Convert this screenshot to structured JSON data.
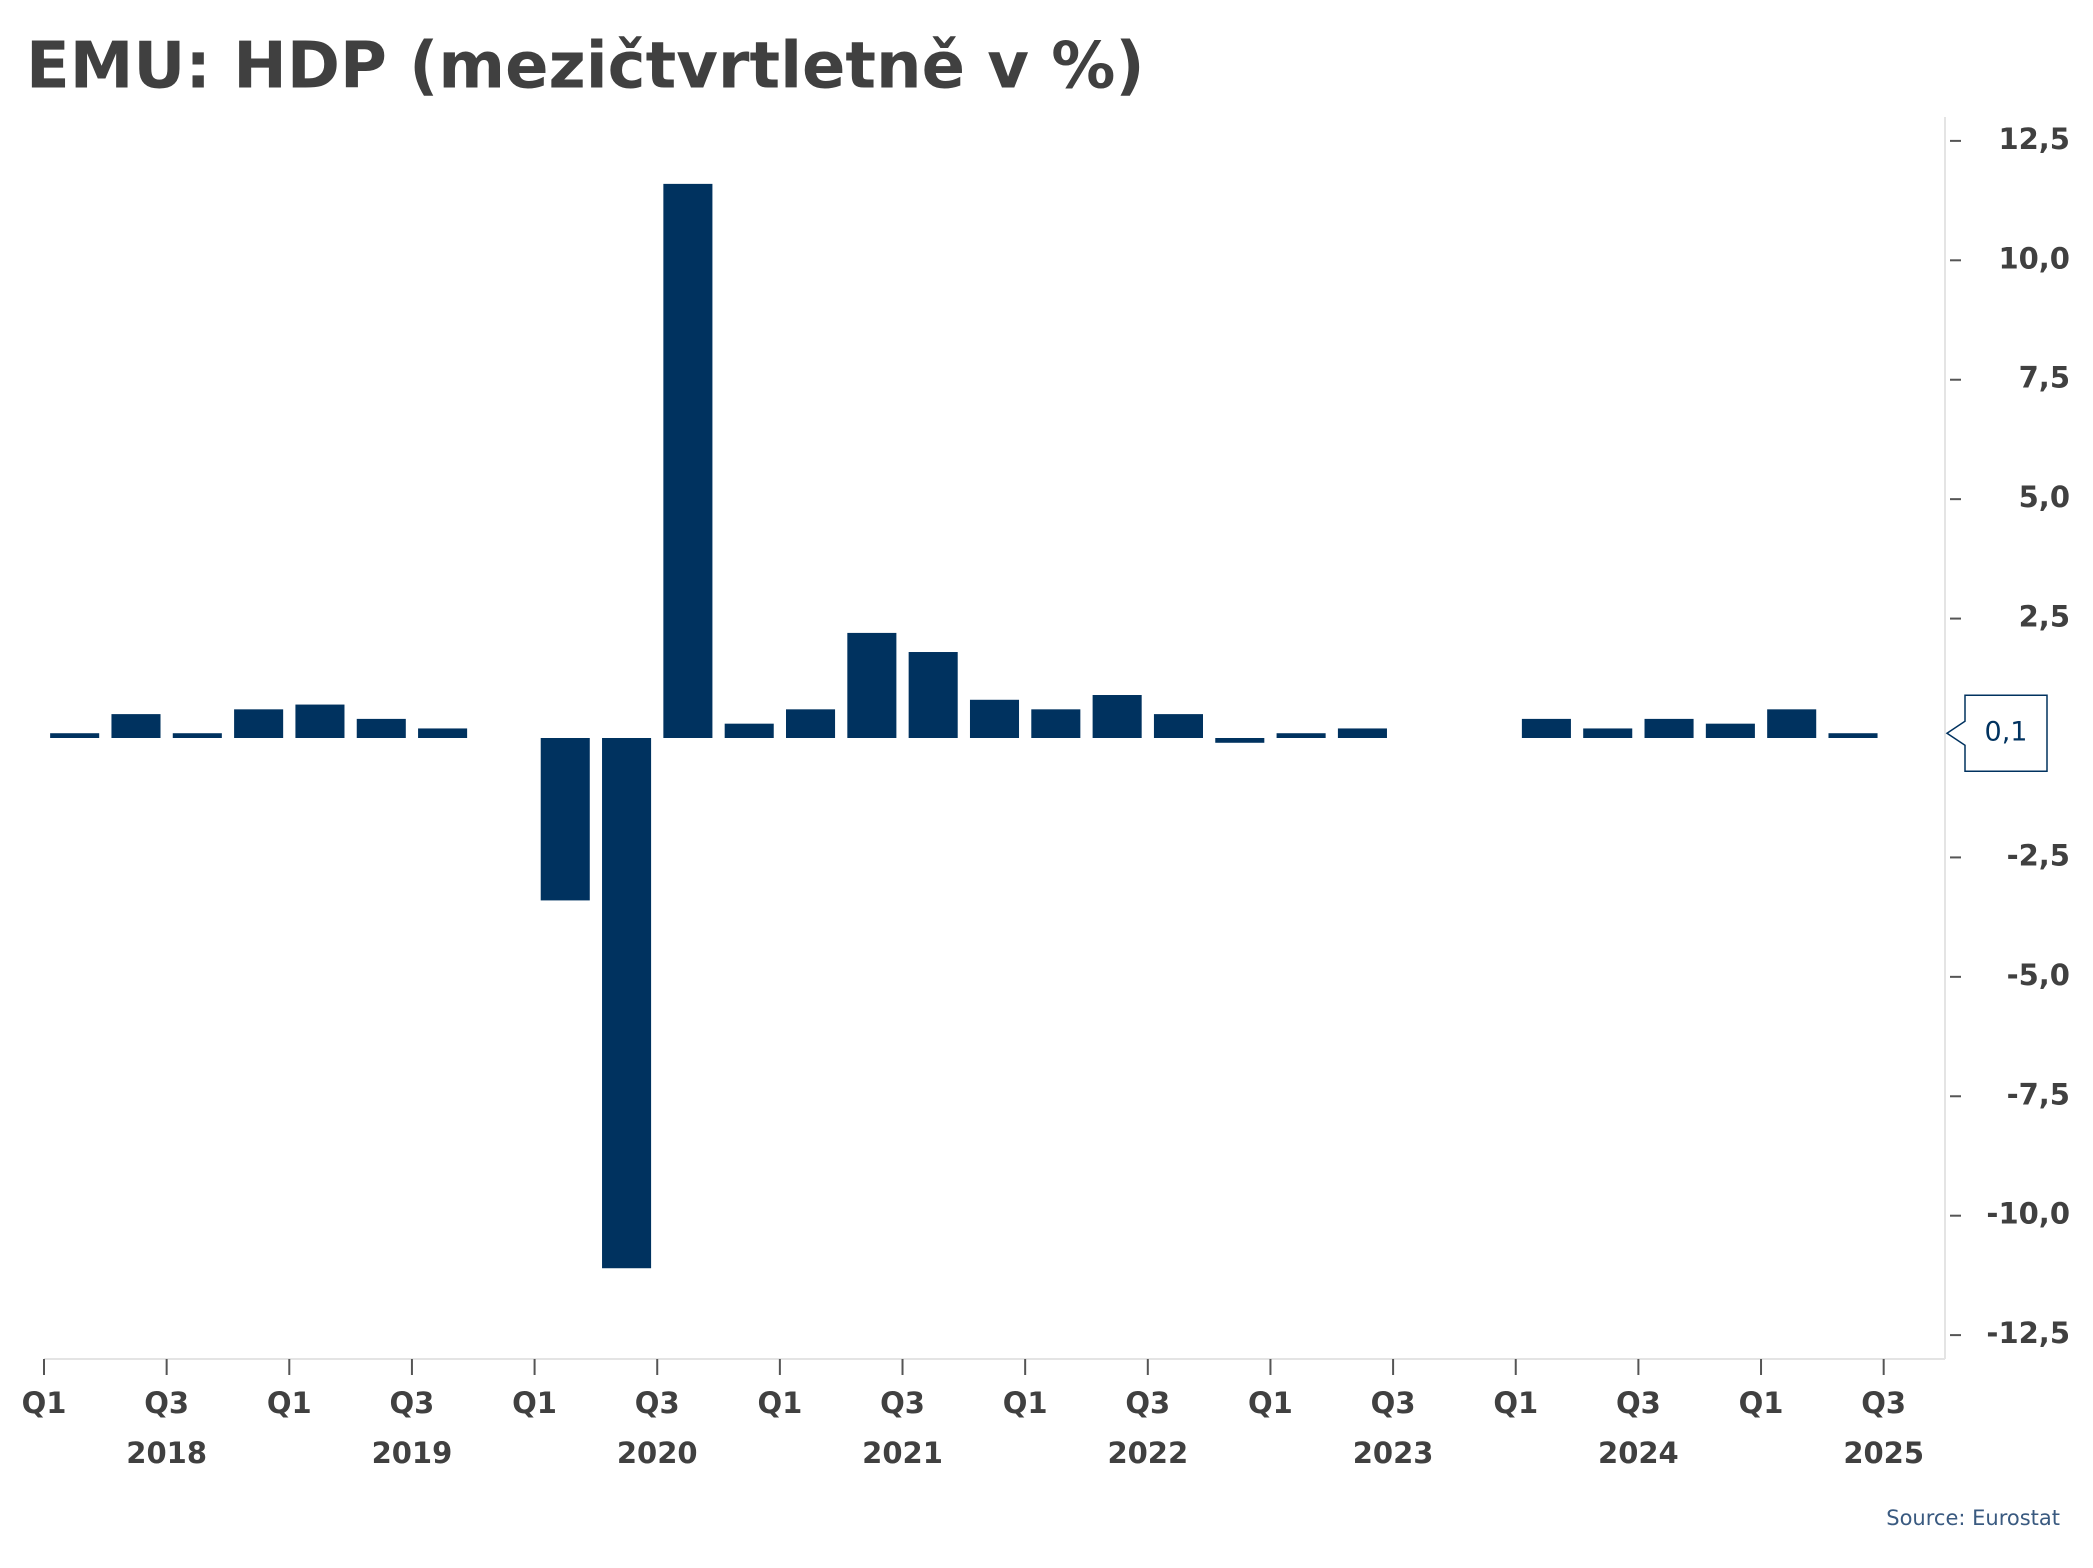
{
  "chart_data": {
    "type": "bar",
    "title": "EMU: HDP (mezičtvrtletně v %)",
    "source": "Source: Eurostat",
    "color": "#00325f",
    "categories": [
      "Q1",
      null,
      "Q3",
      null,
      "Q1",
      null,
      "Q3",
      null,
      "Q1",
      null,
      "Q3",
      null,
      "Q1",
      null,
      "Q3",
      null,
      "Q1",
      null,
      "Q3",
      null,
      "Q1",
      null,
      "Q3",
      null,
      "Q1",
      null,
      "Q3",
      null,
      "Q1",
      null,
      "Q3"
    ],
    "years": [
      "2018",
      "2019",
      "2020",
      "2021",
      "2022",
      "2023",
      "2024",
      "2025"
    ],
    "values": [
      0.1,
      0.5,
      0.1,
      0.6,
      0.7,
      0.4,
      0.2,
      0,
      -3.4,
      -11.1,
      11.6,
      0.3,
      0.6,
      2.2,
      1.8,
      0.8,
      0.6,
      0.9,
      0.5,
      -0.1,
      0.1,
      0.2,
      0,
      0,
      0.4,
      0.2,
      0.4,
      0.3,
      0.6,
      0.1,
      null
    ],
    "value_labels": [
      null,
      null,
      null,
      null,
      null,
      null,
      null,
      null,
      null,
      null,
      null,
      null,
      null,
      null,
      null,
      null,
      null,
      null,
      null,
      null,
      null,
      null,
      null,
      null,
      null,
      null,
      null,
      null,
      null,
      "0,1",
      null
    ],
    "ylim": [
      -13,
      13
    ],
    "yticks": [
      {
        "value": 12.5,
        "label": "12,5"
      },
      {
        "value": 10,
        "label": "10,0"
      },
      {
        "value": 7.5,
        "label": "7,5"
      },
      {
        "value": 5,
        "label": "5,0"
      },
      {
        "value": 2.5,
        "label": "2,5"
      },
      {
        "value": -2.5,
        "label": "-2,5"
      },
      {
        "value": -5,
        "label": "-5,0"
      },
      {
        "value": -7.5,
        "label": "-7,5"
      },
      {
        "value": -10,
        "label": "-10,0"
      },
      {
        "value": -12.5,
        "label": "-12,5"
      }
    ]
  }
}
